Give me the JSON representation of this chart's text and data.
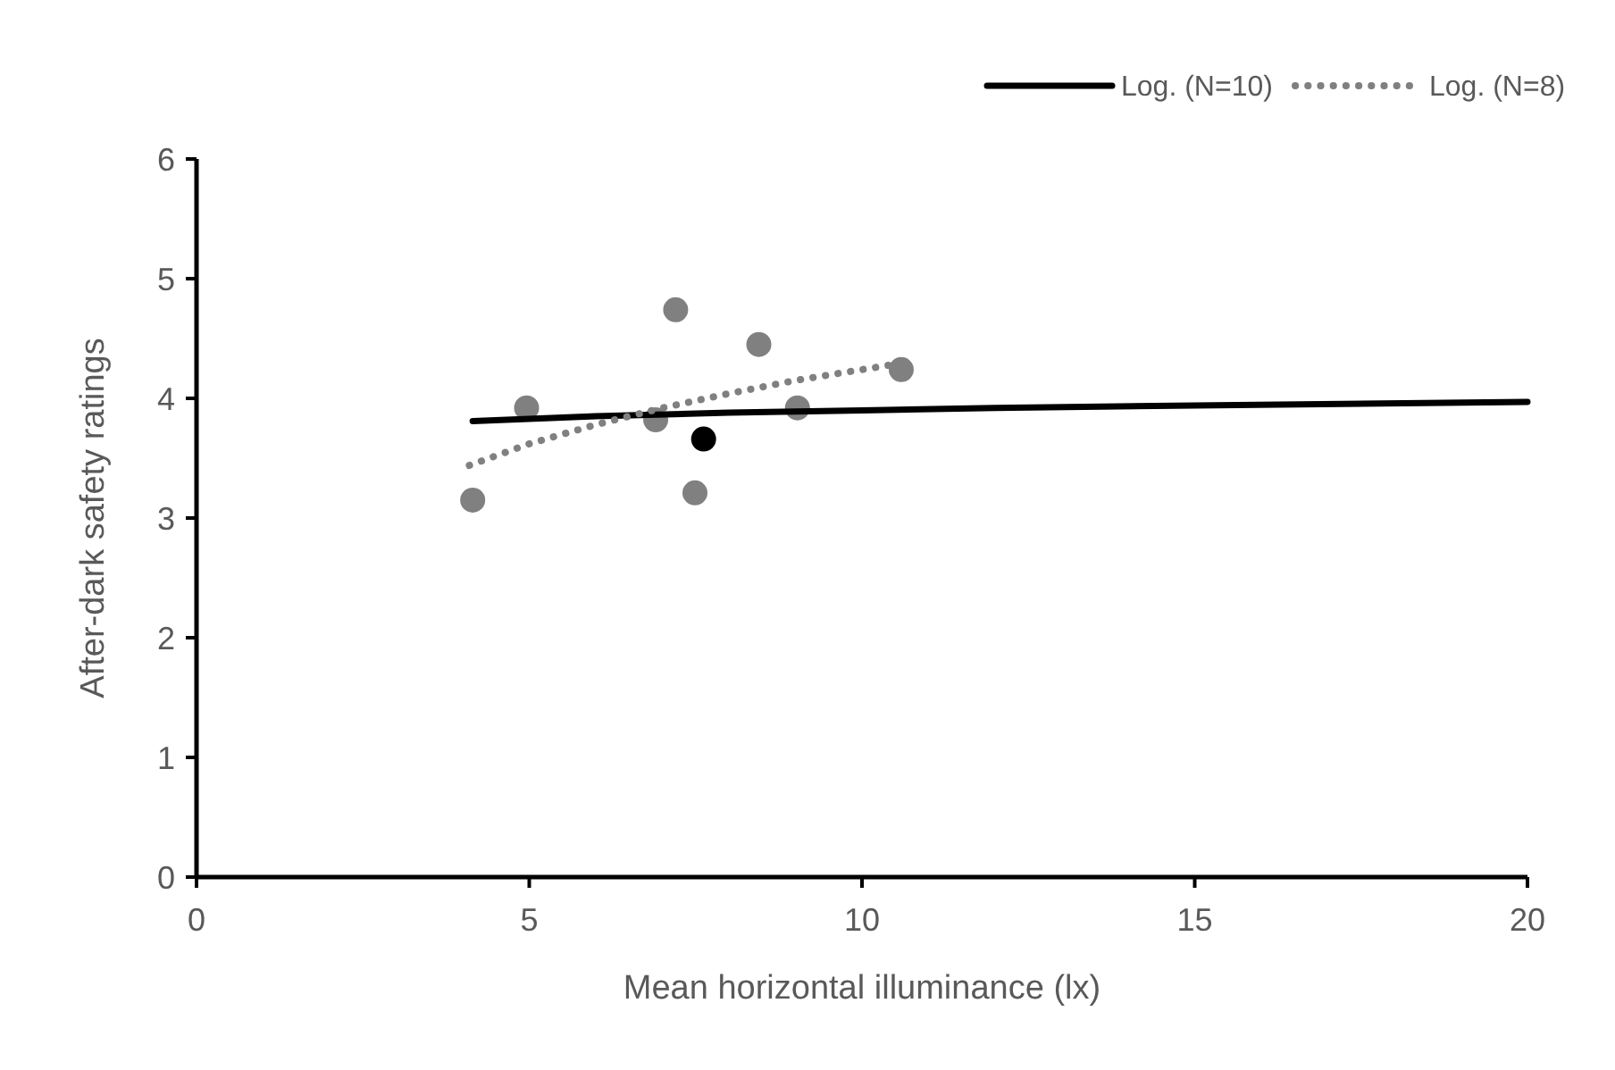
{
  "chart_data": {
    "type": "scatter",
    "xlabel": "Mean horizontal illuminance  (lx)",
    "ylabel": "After-dark safety ratings",
    "xlim": [
      0,
      20
    ],
    "ylim": [
      0,
      6
    ],
    "xticks": [
      0,
      5,
      10,
      15,
      20
    ],
    "yticks": [
      0,
      1,
      2,
      3,
      4,
      5,
      6
    ],
    "grid": false,
    "legend": "top right",
    "series": [
      {
        "type": "scatter",
        "color": "#808080",
        "marker": "circle",
        "x": [
          4.15,
          4.96,
          7.2,
          6.9,
          7.49,
          8.45,
          9.03,
          10.59
        ],
        "values": [
          3.15,
          3.92,
          4.74,
          3.82,
          3.21,
          4.45,
          3.92,
          4.24
        ]
      },
      {
        "type": "scatter",
        "color": "#000000",
        "marker": "circle",
        "x": [
          7.62
        ],
        "values": [
          3.66
        ]
      },
      {
        "type": "line",
        "name": "Log. (N=10)",
        "color": "#000000",
        "line_style": "solid",
        "marker": "none",
        "x": [
          4.15,
          6,
          8,
          10,
          12,
          15,
          20
        ],
        "values": [
          3.81,
          3.85,
          3.88,
          3.9,
          3.92,
          3.94,
          3.97
        ]
      },
      {
        "type": "line",
        "name": "Log. (N=8)",
        "color": "#808080",
        "line_style": "dotted",
        "marker": "none",
        "x": [
          4.1,
          5,
          6,
          7,
          8,
          9,
          10.44
        ],
        "values": [
          3.44,
          3.62,
          3.78,
          3.92,
          4.04,
          4.15,
          4.28
        ]
      }
    ]
  }
}
